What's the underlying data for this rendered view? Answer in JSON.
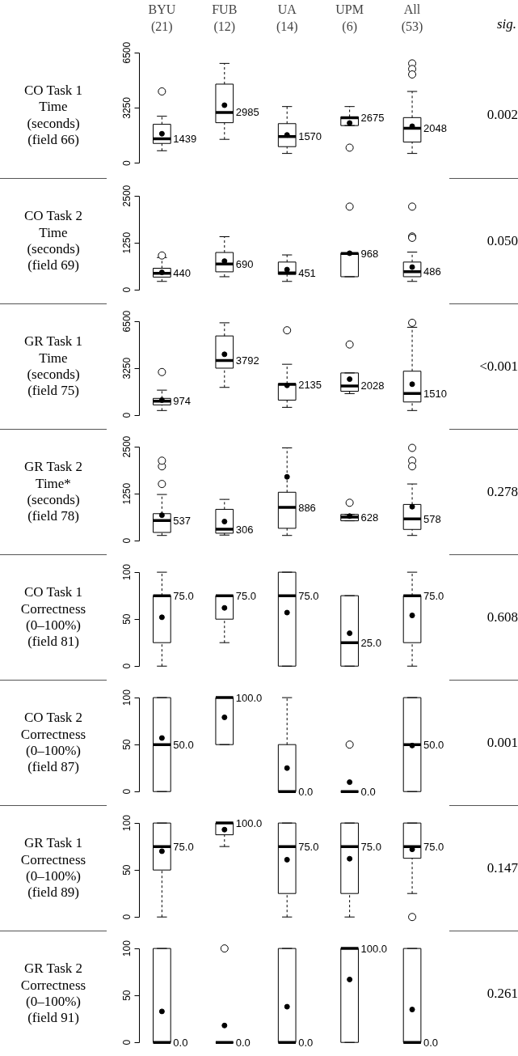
{
  "chart_data": [
    {
      "type": "box",
      "categories": [
        "BYU (21)",
        "FUB (12)",
        "UA (14)",
        "UPM (6)",
        "All (53)"
      ],
      "ylabel": "CO Task 1\nTime\n(seconds)\n(field 66)",
      "ylim": [
        0,
        6500
      ],
      "yticks": [
        0,
        3250,
        6500
      ],
      "boxes": [
        {
          "low": 730,
          "q1": 1160,
          "median": 1439,
          "q3": 2285,
          "high": 2760,
          "mean": 1730,
          "outliers": [
            4220
          ]
        },
        {
          "low": 1400,
          "q1": 2380,
          "median": 2985,
          "q3": 4650,
          "high": 5870,
          "mean": 3410
        },
        {
          "low": 570,
          "q1": 970,
          "median": 1570,
          "q3": 2325,
          "high": 3330,
          "mean": 1660
        },
        {
          "low": 2210,
          "q1": 2210,
          "median": 2675,
          "q3": 2720,
          "high": 3330,
          "mean": 2360,
          "outliers": [
            910
          ]
        },
        {
          "low": 570,
          "q1": 1240,
          "median": 2048,
          "q3": 2680,
          "high": 4220,
          "mean": 2170,
          "outliers": [
            5870,
            5540,
            5220
          ]
        }
      ],
      "value_labels": [
        "1439",
        "2985",
        "1570",
        "2675",
        "2048"
      ],
      "annotations": [
        "sig.",
        "0.002"
      ]
    },
    {
      "type": "box",
      "categories": [
        "BYU (21)",
        "FUB (12)",
        "UA (14)",
        "UPM (6)",
        "All (53)"
      ],
      "ylabel": "CO Task 2\nTime\n(seconds)\n(field 69)",
      "ylim": [
        0,
        2500
      ],
      "yticks": [
        0,
        1250,
        2500
      ],
      "tick_labels": "y",
      "boxes": [
        {
          "low": 225,
          "q1": 340,
          "median": 440,
          "q3": 575,
          "high": 860,
          "mean": 465,
          "outliers": [
            915
          ]
        },
        {
          "low": 350,
          "q1": 480,
          "median": 690,
          "q3": 995,
          "high": 1415,
          "mean": 765
        },
        {
          "low": 225,
          "q1": 410,
          "median": 451,
          "q3": 740,
          "high": 930,
          "mean": 540
        },
        {
          "low": 350,
          "q1": 350,
          "median": 968,
          "q3": 975,
          "high": 975,
          "mean": 975,
          "outliers": [
            2215
          ]
        },
        {
          "low": 225,
          "q1": 350,
          "median": 486,
          "q3": 740,
          "high": 1005,
          "mean": 605,
          "outliers": [
            2215,
            1420,
            1385
          ]
        }
      ],
      "value_labels": [
        "440",
        "690",
        "451",
        "968",
        "486"
      ],
      "annotations": [
        "0.050"
      ]
    },
    {
      "type": "box",
      "categories": [
        "BYU (21)",
        "FUB (12)",
        "UA (14)",
        "UPM (6)",
        "All (53)"
      ],
      "ylabel": "GR Task 1\nTime\n(seconds)\n(field 75)",
      "ylim": [
        0,
        6500
      ],
      "yticks": [
        0,
        3250,
        6500
      ],
      "tick_labels": "y",
      "boxes": [
        {
          "low": 330,
          "q1": 720,
          "median": 974,
          "q3": 1170,
          "high": 1740,
          "mean": 1050,
          "outliers": [
            2990
          ]
        },
        {
          "low": 1930,
          "q1": 3260,
          "median": 3792,
          "q3": 5490,
          "high": 6400,
          "mean": 4220
        },
        {
          "low": 550,
          "q1": 1050,
          "median": 2135,
          "q3": 2190,
          "high": 3530,
          "mean": 2070,
          "outliers": [
            5880
          ]
        },
        {
          "low": 1500,
          "q1": 1660,
          "median": 2028,
          "q3": 2930,
          "high": 2930,
          "mean": 2500,
          "outliers": [
            4900
          ]
        },
        {
          "low": 330,
          "q1": 920,
          "median": 1510,
          "q3": 3050,
          "high": 6090,
          "mean": 2150,
          "outliers": [
            6400
          ]
        }
      ],
      "value_labels": [
        "974",
        "3792",
        "2135",
        "2028",
        "1510"
      ],
      "annotations": [
        "<0.001"
      ]
    },
    {
      "type": "box",
      "categories": [
        "BYU (21)",
        "FUB (12)",
        "UA (14)",
        "UPM (6)",
        "All (53)"
      ],
      "ylabel": "GR Task 2\nTime*\n(seconds)\n(field 78)",
      "ylim": [
        0,
        2500
      ],
      "yticks": [
        0,
        1250,
        2500
      ],
      "tick_labels": "y",
      "boxes": [
        {
          "low": 140,
          "q1": 220,
          "median": 537,
          "q3": 720,
          "high": 1230,
          "mean": 680,
          "outliers": [
            1510,
            1980,
            2130
          ]
        },
        {
          "low": 150,
          "q1": 200,
          "median": 306,
          "q3": 835,
          "high": 1100,
          "mean": 510
        },
        {
          "low": 140,
          "q1": 330,
          "median": 886,
          "q3": 1290,
          "high": 2470,
          "mean": 1700
        },
        {
          "low": 530,
          "q1": 530,
          "median": 628,
          "q3": 700,
          "high": 700,
          "mean": 655,
          "outliers": [
            1010
          ]
        },
        {
          "low": 140,
          "q1": 300,
          "median": 578,
          "q3": 965,
          "high": 1510,
          "mean": 905,
          "outliers": [
            2470,
            2130,
            1980
          ]
        }
      ],
      "value_labels": [
        "537",
        "306",
        "886",
        "628",
        "578"
      ],
      "annotations": [
        "0.278"
      ]
    },
    {
      "type": "box",
      "categories": [
        "BYU (21)",
        "FUB (12)",
        "UA (14)",
        "UPM (6)",
        "All (53)"
      ],
      "ylabel": "CO Task 1\nCorrectness\n(0–100%)\n(field 81)",
      "ylim": [
        0,
        100
      ],
      "yticks": [
        0,
        50,
        100
      ],
      "tick_labels": "y",
      "boxes": [
        {
          "low": 0,
          "q1": 25,
          "median": 75,
          "q3": 75,
          "high": 100,
          "mean": 52
        },
        {
          "low": 25,
          "q1": 50,
          "median": 75,
          "q3": 75,
          "high": 75,
          "mean": 62
        },
        {
          "low": 0,
          "q1": 0,
          "median": 75,
          "q3": 100,
          "high": 100,
          "mean": 57
        },
        {
          "low": 0,
          "q1": 0,
          "median": 25,
          "q3": 75,
          "high": 75,
          "mean": 35
        },
        {
          "low": 0,
          "q1": 25,
          "median": 75,
          "q3": 75,
          "high": 100,
          "mean": 54
        }
      ],
      "value_labels": [
        "75.0",
        "75.0",
        "75.0",
        "25.0",
        "75.0"
      ],
      "annotations": [
        "0.608"
      ]
    },
    {
      "type": "box",
      "categories": [
        "BYU (21)",
        "FUB (12)",
        "UA (14)",
        "UPM (6)",
        "All (53)"
      ],
      "ylabel": "CO Task 2\nCorrectness\n(0–100%)\n(field 87)",
      "ylim": [
        0,
        100
      ],
      "yticks": [
        0,
        50,
        100
      ],
      "tick_labels": "y",
      "boxes": [
        {
          "low": 0,
          "q1": 0,
          "median": 50,
          "q3": 100,
          "high": 100,
          "mean": 57
        },
        {
          "low": 50,
          "q1": 50,
          "median": 100,
          "q3": 100,
          "high": 100,
          "mean": 79
        },
        {
          "low": 0,
          "q1": 0,
          "median": 0,
          "q3": 50,
          "high": 100,
          "mean": 25
        },
        {
          "low": 0,
          "q1": 0,
          "median": 0,
          "q3": 0,
          "high": 0,
          "mean": 10,
          "outliers": [
            50
          ]
        },
        {
          "low": 0,
          "q1": 0,
          "median": 50,
          "q3": 100,
          "high": 100,
          "mean": 49
        }
      ],
      "value_labels": [
        "50.0",
        "100.0",
        "0.0",
        "0.0",
        "50.0"
      ],
      "annotations": [
        "0.001"
      ]
    },
    {
      "type": "box",
      "categories": [
        "BYU (21)",
        "FUB (12)",
        "UA (14)",
        "UPM (6)",
        "All (53)"
      ],
      "ylabel": "GR Task 1\nCorrectness\n(0–100%)\n(field 89)",
      "ylim": [
        0,
        100
      ],
      "yticks": [
        0,
        50,
        100
      ],
      "tick_labels": "y",
      "boxes": [
        {
          "low": 0,
          "q1": 50,
          "median": 75,
          "q3": 100,
          "high": 100,
          "mean": 70
        },
        {
          "low": 75,
          "q1": 87.5,
          "median": 100,
          "q3": 100,
          "high": 100,
          "mean": 93
        },
        {
          "low": 0,
          "q1": 25,
          "median": 75,
          "q3": 100,
          "high": 100,
          "mean": 61
        },
        {
          "low": 0,
          "q1": 25,
          "median": 75,
          "q3": 100,
          "high": 100,
          "mean": 62
        },
        {
          "low": 25,
          "q1": 62.5,
          "median": 75,
          "q3": 100,
          "high": 100,
          "mean": 72,
          "outliers": [
            0
          ]
        }
      ],
      "value_labels": [
        "75.0",
        "100.0",
        "75.0",
        "75.0",
        "75.0"
      ],
      "annotations": [
        "0.147"
      ]
    },
    {
      "type": "box",
      "categories": [
        "BYU (21)",
        "FUB (12)",
        "UA (14)",
        "UPM (6)",
        "All (53)"
      ],
      "ylabel": "GR Task 2\nCorrectness\n(0–100%)\n(field 91)",
      "ylim": [
        0,
        100
      ],
      "yticks": [
        0,
        50,
        100
      ],
      "tick_labels": "y",
      "boxes": [
        {
          "low": 0,
          "q1": 0,
          "median": 0,
          "q3": 100,
          "high": 100,
          "mean": 33
        },
        {
          "low": 0,
          "q1": 0,
          "median": 0,
          "q3": 0,
          "high": 0,
          "mean": 18,
          "outliers": [
            100
          ]
        },
        {
          "low": 0,
          "q1": 0,
          "median": 0,
          "q3": 100,
          "high": 100,
          "mean": 38
        },
        {
          "low": 0,
          "q1": 0,
          "median": 100,
          "q3": 100,
          "high": 100,
          "mean": 67
        },
        {
          "low": 0,
          "q1": 0,
          "median": 0,
          "q3": 100,
          "high": 100,
          "mean": 35
        }
      ],
      "value_labels": [
        "0.0",
        "0.0",
        "0.0",
        "100.0",
        "0.0"
      ],
      "annotations": [
        "0.261"
      ]
    }
  ]
}
